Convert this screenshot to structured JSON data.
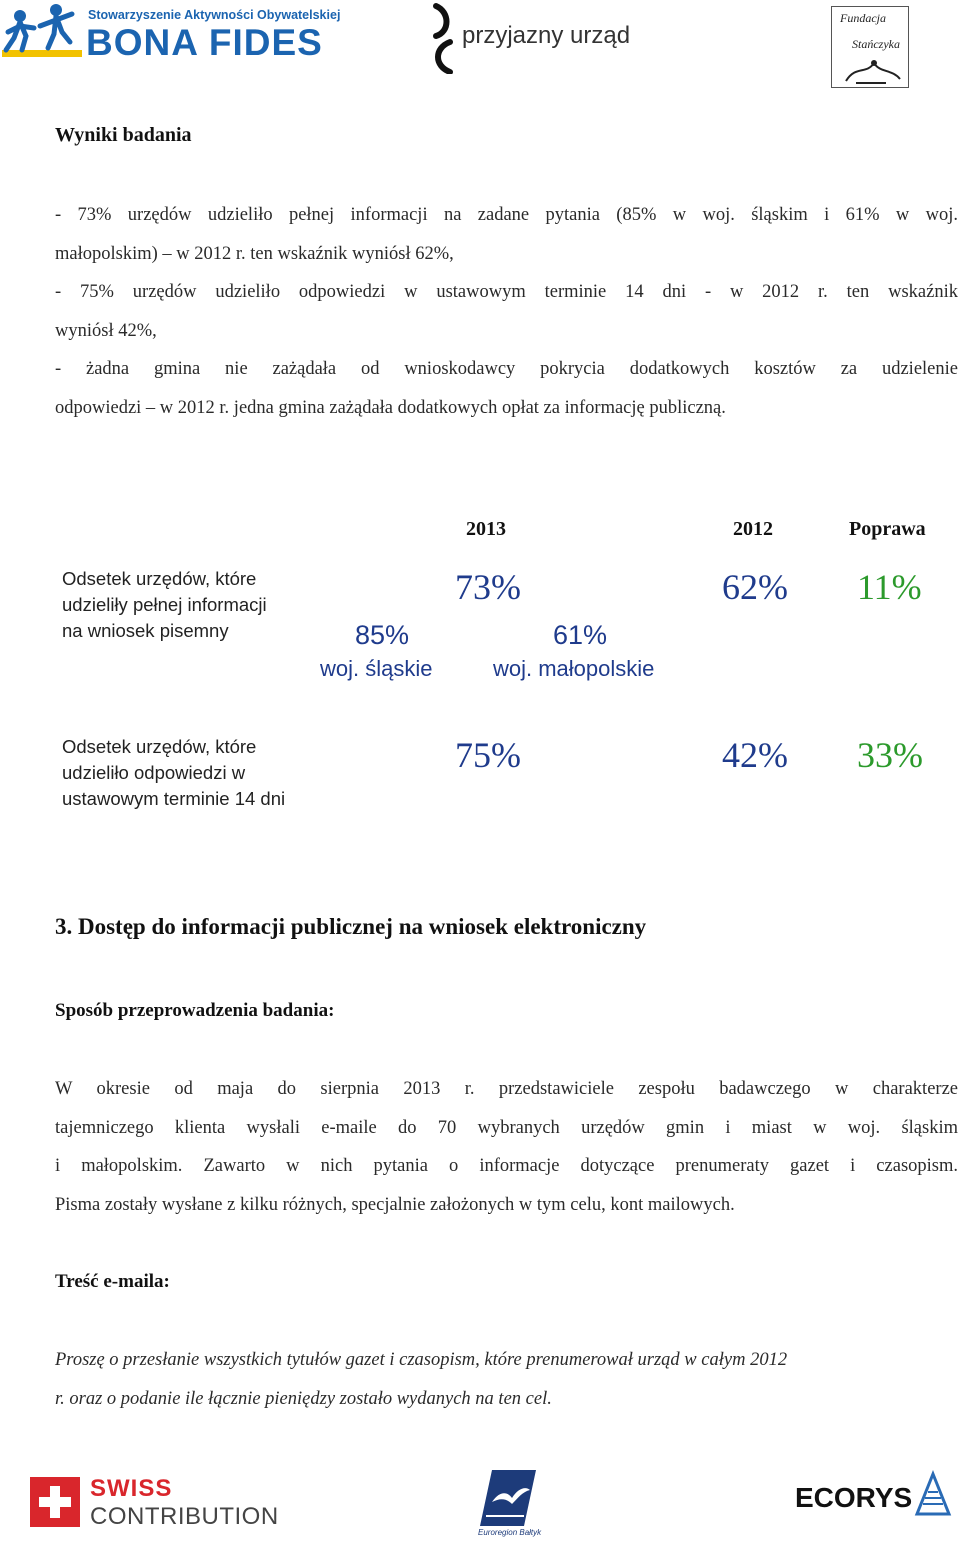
{
  "header": {
    "bona_fides": {
      "small": "Stowarzyszenie Aktywności Obywatelskiej",
      "big": "BONA FIDES"
    },
    "przyjazny": {
      "text": "przyjazny urząd"
    },
    "fundacja": {
      "line1": "Fundacja",
      "line2": "Stańczyka"
    }
  },
  "results": {
    "heading": "Wyniki badania",
    "lines": [
      "- 73% urzędów udzieliło pełnej informacji na zadane pytania (85% w woj. śląskim i 61% w woj.",
      "małopolskim) – w 2012 r. ten wskaźnik wyniósł 62%,",
      "- 75% urzędów udzieliło odpowiedzi w ustawowym terminie 14 dni - w 2012 r. ten wskaźnik",
      "wyniósł 42%,",
      "- żadna gmina nie zażądała od wnioskodawcy pokrycia dodatkowych kosztów za udzielenie",
      "odpowiedzi – w 2012 r. jedna gmina zażądała dodatkowych opłat za informację publiczną."
    ]
  },
  "table": {
    "headers": {
      "y2013": "2013",
      "y2012": "2012",
      "improvement": "Poprawa"
    },
    "row1": {
      "label": "Odsetek urzędów, które udzieliły pełnej informacji na wniosek pisemny",
      "v2013": "73%",
      "v2012": "62%",
      "improvement": "11%",
      "region1_value": "85%",
      "region1_label": "woj. śląskie",
      "region2_value": "61%",
      "region2_label": "woj. małopolskie"
    },
    "row2": {
      "label": "Odsetek urzędów, które udzieliło odpowiedzi w ustawowym terminie 14 dni",
      "v2013": "75%",
      "v2012": "42%",
      "improvement": "33%"
    }
  },
  "section3": {
    "title": "3. Dostęp do informacji publicznej na wniosek elektroniczny",
    "method_heading": "Sposób przeprowadzenia badania:",
    "method_lines": [
      "W okresie od maja do sierpnia 2013 r. przedstawiciele zespołu badawczego w charakterze",
      "tajemniczego klienta wysłali e-maile do 70 wybranych urzędów gmin i miast w woj. śląskim",
      "i małopolskim. Zawarto w nich pytania o informacje dotyczące prenumeraty gazet i czasopism.",
      "Pisma zostały wysłane z kilku różnych, specjalnie założonych w tym celu, kont mailowych."
    ],
    "email_heading": "Treść e-maila:",
    "email_lines": [
      "Proszę o przesłanie wszystkich tytułów gazet i czasopism, które prenumerował urząd w całym 2012",
      "r. oraz o podanie ile łącznie pieniędzy zostało wydanych na ten cel."
    ]
  },
  "footer": {
    "swiss": {
      "line1": "SWISS",
      "line2": "CONTRIBUTION"
    },
    "euroregion": {
      "text": "Euroregion Bałtyk"
    },
    "ecorys": {
      "text": "ECORYS"
    }
  },
  "colors": {
    "bona_blue": "#1b64b0",
    "value_blue": "#1f3b8c",
    "improvement_green": "#2c9a2c",
    "swiss_red": "#d9262c"
  }
}
